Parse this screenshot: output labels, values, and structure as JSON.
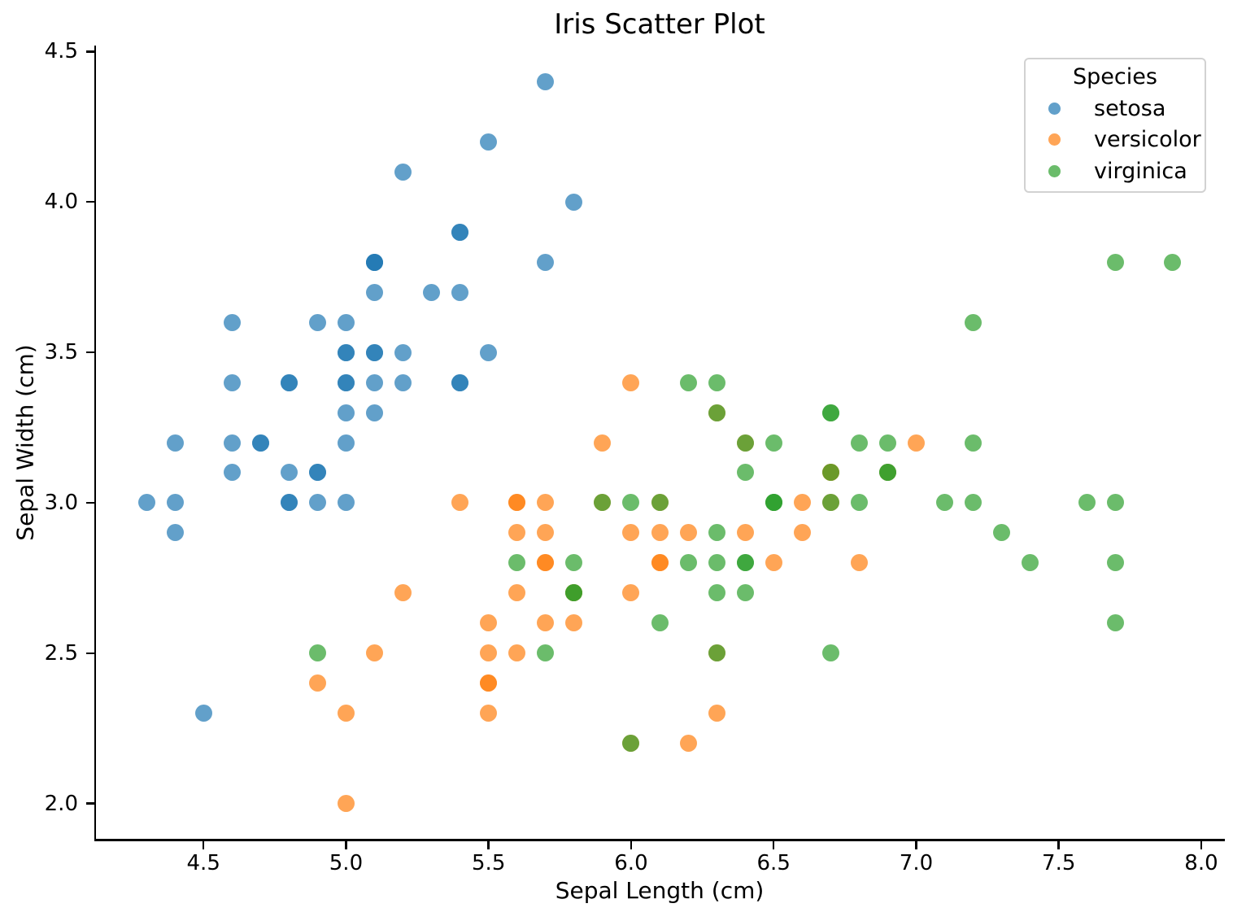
{
  "title": "Iris Scatter Plot",
  "chart_data": {
    "type": "scatter",
    "title": "Iris Scatter Plot",
    "xlabel": "Sepal Length (cm)",
    "ylabel": "Sepal Width (cm)",
    "xlim": [
      4.12,
      8.08
    ],
    "ylim": [
      1.88,
      4.52
    ],
    "xticks": [
      4.5,
      5.0,
      5.5,
      6.0,
      6.5,
      7.0,
      7.5,
      8.0
    ],
    "yticks": [
      2.0,
      2.5,
      3.0,
      3.5,
      4.0,
      4.5
    ],
    "tick_decimals": 1,
    "grid": false,
    "marker_alpha": 0.7,
    "marker_diameter_px": 21,
    "legend": {
      "title": "Species",
      "position": "upper right"
    },
    "series": [
      {
        "name": "setosa",
        "color": "#1f77b4",
        "points": [
          [
            5.1,
            3.5
          ],
          [
            4.9,
            3.0
          ],
          [
            4.7,
            3.2
          ],
          [
            4.6,
            3.1
          ],
          [
            5.0,
            3.6
          ],
          [
            5.4,
            3.9
          ],
          [
            4.6,
            3.4
          ],
          [
            5.0,
            3.4
          ],
          [
            4.4,
            2.9
          ],
          [
            4.9,
            3.1
          ],
          [
            5.4,
            3.7
          ],
          [
            4.8,
            3.4
          ],
          [
            4.8,
            3.0
          ],
          [
            4.3,
            3.0
          ],
          [
            5.8,
            4.0
          ],
          [
            5.7,
            4.4
          ],
          [
            5.4,
            3.9
          ],
          [
            5.1,
            3.5
          ],
          [
            5.7,
            3.8
          ],
          [
            5.1,
            3.8
          ],
          [
            5.4,
            3.4
          ],
          [
            5.1,
            3.7
          ],
          [
            4.6,
            3.6
          ],
          [
            5.1,
            3.3
          ],
          [
            4.8,
            3.4
          ],
          [
            5.0,
            3.0
          ],
          [
            5.0,
            3.4
          ],
          [
            5.2,
            3.5
          ],
          [
            5.2,
            3.4
          ],
          [
            4.7,
            3.2
          ],
          [
            4.8,
            3.1
          ],
          [
            5.4,
            3.4
          ],
          [
            5.2,
            4.1
          ],
          [
            5.5,
            4.2
          ],
          [
            4.9,
            3.1
          ],
          [
            5.0,
            3.2
          ],
          [
            5.5,
            3.5
          ],
          [
            4.9,
            3.6
          ],
          [
            4.4,
            3.0
          ],
          [
            5.1,
            3.4
          ],
          [
            5.0,
            3.5
          ],
          [
            4.5,
            2.3
          ],
          [
            4.4,
            3.2
          ],
          [
            5.0,
            3.5
          ],
          [
            5.1,
            3.8
          ],
          [
            4.8,
            3.0
          ],
          [
            5.1,
            3.8
          ],
          [
            4.6,
            3.2
          ],
          [
            5.3,
            3.7
          ],
          [
            5.0,
            3.3
          ]
        ]
      },
      {
        "name": "versicolor",
        "color": "#ff7f0e",
        "points": [
          [
            7.0,
            3.2
          ],
          [
            6.4,
            3.2
          ],
          [
            6.9,
            3.1
          ],
          [
            5.5,
            2.3
          ],
          [
            6.5,
            2.8
          ],
          [
            5.7,
            2.8
          ],
          [
            6.3,
            3.3
          ],
          [
            4.9,
            2.4
          ],
          [
            6.6,
            2.9
          ],
          [
            5.2,
            2.7
          ],
          [
            5.0,
            2.0
          ],
          [
            5.9,
            3.0
          ],
          [
            6.0,
            2.2
          ],
          [
            6.1,
            2.9
          ],
          [
            5.6,
            2.9
          ],
          [
            6.7,
            3.1
          ],
          [
            5.6,
            3.0
          ],
          [
            5.8,
            2.7
          ],
          [
            6.2,
            2.2
          ],
          [
            5.6,
            2.5
          ],
          [
            5.9,
            3.2
          ],
          [
            6.1,
            2.8
          ],
          [
            6.3,
            2.5
          ],
          [
            6.1,
            2.8
          ],
          [
            6.4,
            2.9
          ],
          [
            6.6,
            3.0
          ],
          [
            6.8,
            2.8
          ],
          [
            6.7,
            3.0
          ],
          [
            6.0,
            2.9
          ],
          [
            5.7,
            2.6
          ],
          [
            5.5,
            2.4
          ],
          [
            5.5,
            2.4
          ],
          [
            5.8,
            2.7
          ],
          [
            6.0,
            2.7
          ],
          [
            5.4,
            3.0
          ],
          [
            6.0,
            3.4
          ],
          [
            6.7,
            3.1
          ],
          [
            6.3,
            2.3
          ],
          [
            5.6,
            3.0
          ],
          [
            5.5,
            2.5
          ],
          [
            5.5,
            2.6
          ],
          [
            6.1,
            3.0
          ],
          [
            5.8,
            2.6
          ],
          [
            5.0,
            2.3
          ],
          [
            5.6,
            2.7
          ],
          [
            5.7,
            3.0
          ],
          [
            5.7,
            2.9
          ],
          [
            6.2,
            2.9
          ],
          [
            5.1,
            2.5
          ],
          [
            5.7,
            2.8
          ]
        ]
      },
      {
        "name": "virginica",
        "color": "#2ca02c",
        "points": [
          [
            6.3,
            3.3
          ],
          [
            5.8,
            2.7
          ],
          [
            7.1,
            3.0
          ],
          [
            6.3,
            2.9
          ],
          [
            6.5,
            3.0
          ],
          [
            7.6,
            3.0
          ],
          [
            4.9,
            2.5
          ],
          [
            7.3,
            2.9
          ],
          [
            6.7,
            2.5
          ],
          [
            7.2,
            3.6
          ],
          [
            6.5,
            3.2
          ],
          [
            6.4,
            2.7
          ],
          [
            6.8,
            3.0
          ],
          [
            5.7,
            2.5
          ],
          [
            5.8,
            2.8
          ],
          [
            6.4,
            3.2
          ],
          [
            6.5,
            3.0
          ],
          [
            7.7,
            3.8
          ],
          [
            7.7,
            2.6
          ],
          [
            6.0,
            2.2
          ],
          [
            6.9,
            3.2
          ],
          [
            5.6,
            2.8
          ],
          [
            7.7,
            2.8
          ],
          [
            6.3,
            2.7
          ],
          [
            6.7,
            3.3
          ],
          [
            7.2,
            3.2
          ],
          [
            6.2,
            2.8
          ],
          [
            6.1,
            3.0
          ],
          [
            6.4,
            2.8
          ],
          [
            7.2,
            3.0
          ],
          [
            7.4,
            2.8
          ],
          [
            7.9,
            3.8
          ],
          [
            6.4,
            2.8
          ],
          [
            6.3,
            2.8
          ],
          [
            6.1,
            2.6
          ],
          [
            7.7,
            3.0
          ],
          [
            6.3,
            3.4
          ],
          [
            6.4,
            3.1
          ],
          [
            6.0,
            3.0
          ],
          [
            6.9,
            3.1
          ],
          [
            6.7,
            3.1
          ],
          [
            6.9,
            3.1
          ],
          [
            5.8,
            2.7
          ],
          [
            6.8,
            3.2
          ],
          [
            6.7,
            3.3
          ],
          [
            6.7,
            3.0
          ],
          [
            6.3,
            2.5
          ],
          [
            6.5,
            3.0
          ],
          [
            6.2,
            3.4
          ],
          [
            5.9,
            3.0
          ]
        ]
      }
    ]
  }
}
